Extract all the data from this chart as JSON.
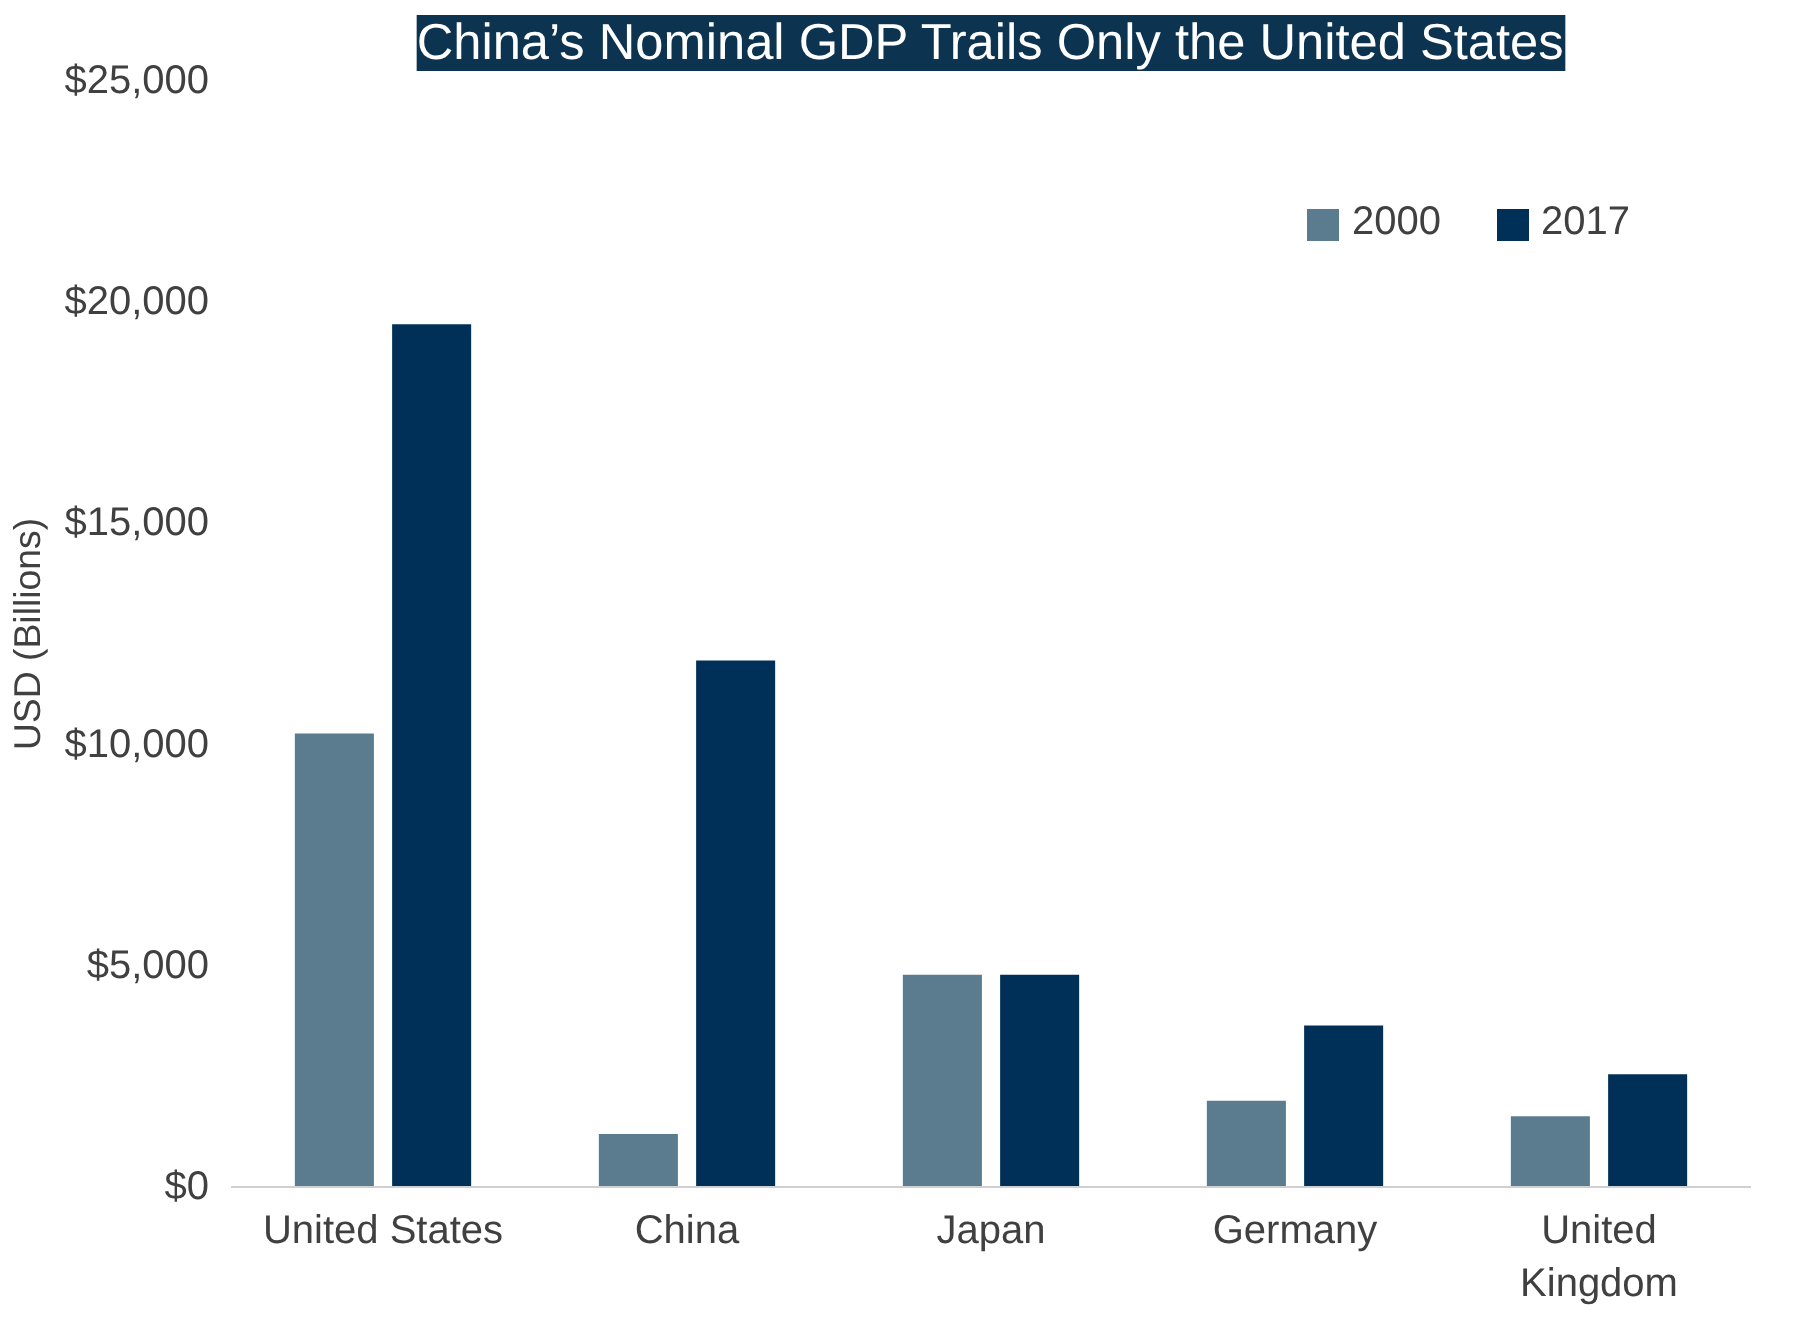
{
  "chart_data": {
    "type": "bar",
    "title": "China’s Nominal GDP Trails Only the United States",
    "ylabel": "USD (Billions)",
    "categories": [
      "United States",
      "China",
      "Japan",
      "Germany",
      "United\nKingdom"
    ],
    "series": [
      {
        "name": "2000",
        "color": "#5b7b8f",
        "values": [
          10250,
          1200,
          4800,
          1950,
          1600
        ]
      },
      {
        "name": "2017",
        "color": "#003057",
        "values": [
          19500,
          11900,
          4800,
          3650,
          2550
        ]
      }
    ],
    "ylim": [
      0,
      25000
    ],
    "yticks": [
      {
        "value": 0,
        "label": "$0"
      },
      {
        "value": 5000,
        "label": "$5,000"
      },
      {
        "value": 10000,
        "label": "$10,000"
      },
      {
        "value": 15000,
        "label": "$15,000"
      },
      {
        "value": 20000,
        "label": "$20,000"
      },
      {
        "value": 25000,
        "label": "$25,000"
      }
    ],
    "grid": false,
    "legend": "top right"
  }
}
